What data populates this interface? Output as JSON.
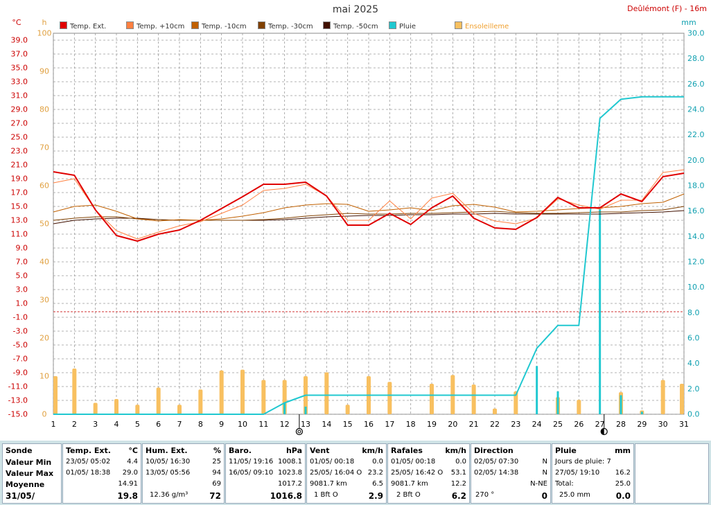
{
  "title": "mai 2025",
  "station": "Deûlémont (F) - 16m",
  "axis_units": {
    "temp": "°C",
    "sun": "h",
    "rain": "mm"
  },
  "legend": [
    {
      "label": "Temp. Ext.",
      "color": "#e00000"
    },
    {
      "label": "Temp. +10cm",
      "color": "#ff8040"
    },
    {
      "label": "Temp. -10cm",
      "color": "#c06000"
    },
    {
      "label": "Temp. -30cm",
      "color": "#804000"
    },
    {
      "label": "Temp. -50cm",
      "color": "#401000"
    },
    {
      "label": "Pluie",
      "color": "#20c8d0"
    },
    {
      "label": "Ensoleilleme",
      "color": "#f8c060"
    }
  ],
  "chart_data": {
    "type": "line",
    "title": "mai 2025",
    "x": [
      1,
      2,
      3,
      4,
      5,
      6,
      7,
      8,
      9,
      10,
      11,
      12,
      13,
      14,
      15,
      16,
      17,
      18,
      19,
      20,
      21,
      22,
      23,
      24,
      25,
      26,
      27,
      28,
      29,
      30,
      31
    ],
    "xlim": [
      1,
      31
    ],
    "temp_axis": {
      "ylim": [
        -15,
        40
      ],
      "ticks": [
        "39.0",
        "37.0",
        "35.0",
        "33.0",
        "31.0",
        "29.0",
        "27.0",
        "25.0",
        "23.0",
        "21.0",
        "19.0",
        "17.0",
        "15.0",
        "13.0",
        "11.0",
        "9.0",
        "7.0",
        "5.0",
        "3.0",
        "1.0",
        "-1.0",
        "-3.0",
        "-5.0",
        "-7.0",
        "-9.0",
        "-11.0",
        "-13.0",
        "-15.0"
      ]
    },
    "sun_axis": {
      "ylim": [
        0,
        100
      ],
      "ticks": [
        "100",
        "90",
        "80",
        "70",
        "60",
        "50",
        "40",
        "30",
        "20",
        "10",
        "0"
      ]
    },
    "rain_axis": {
      "ylim": [
        0,
        30
      ],
      "ticks": [
        "30.0",
        "28.0",
        "26.0",
        "24.0",
        "22.0",
        "20.0",
        "18.0",
        "16.0",
        "14.0",
        "12.0",
        "10.0",
        "8.0",
        "6.0",
        "4.0",
        "2.0",
        "0.0"
      ]
    },
    "series": [
      {
        "name": "Temp. Ext.",
        "axis": "temp",
        "color": "#e00000",
        "width": 2,
        "values": [
          20.0,
          19.5,
          14.5,
          10.8,
          10.0,
          11.0,
          11.6,
          13.0,
          14.7,
          16.4,
          18.2,
          18.2,
          18.5,
          16.5,
          12.3,
          12.3,
          14.0,
          12.4,
          14.8,
          16.5,
          13.3,
          11.9,
          11.7,
          13.4,
          16.3,
          14.8,
          14.8,
          16.8,
          15.7,
          19.3,
          19.8
        ]
      },
      {
        "name": "Temp. +10cm",
        "axis": "temp",
        "color": "#ff8040",
        "width": 1,
        "values": [
          18.4,
          19.0,
          14.5,
          11.5,
          10.3,
          11.3,
          12.2,
          12.8,
          14.0,
          15.2,
          17.3,
          17.6,
          18.2,
          16.5,
          13.0,
          13.0,
          15.8,
          13.2,
          16.2,
          16.9,
          14.0,
          12.9,
          12.5,
          13.3,
          16.1,
          15.2,
          14.6,
          15.9,
          15.9,
          19.9,
          20.3
        ]
      },
      {
        "name": "Temp. -10cm",
        "axis": "temp",
        "color": "#c06000",
        "width": 1,
        "values": [
          14.2,
          15.0,
          15.2,
          14.3,
          13.2,
          12.9,
          13.1,
          13.0,
          13.2,
          13.6,
          14.1,
          14.8,
          15.2,
          15.4,
          15.3,
          14.3,
          14.5,
          14.8,
          14.4,
          15.1,
          15.3,
          14.9,
          14.2,
          14.3,
          14.5,
          14.7,
          14.8,
          15.0,
          15.4,
          15.6,
          16.8
        ]
      },
      {
        "name": "Temp. -30cm",
        "axis": "temp",
        "color": "#804000",
        "width": 1,
        "values": [
          13.0,
          13.3,
          13.5,
          13.5,
          13.2,
          13.1,
          13.0,
          13.0,
          13.0,
          13.0,
          13.1,
          13.3,
          13.6,
          13.8,
          14.0,
          13.9,
          13.9,
          14.0,
          14.0,
          14.1,
          14.2,
          14.3,
          14.1,
          14.0,
          14.0,
          14.1,
          14.2,
          14.2,
          14.4,
          14.5,
          15.0
        ]
      },
      {
        "name": "Temp. -50cm",
        "axis": "temp",
        "color": "#401000",
        "width": 1,
        "values": [
          12.5,
          13.0,
          13.2,
          13.3,
          13.3,
          13.1,
          13.0,
          13.0,
          13.0,
          13.0,
          13.0,
          13.1,
          13.3,
          13.5,
          13.6,
          13.7,
          13.7,
          13.8,
          13.8,
          13.9,
          13.9,
          14.0,
          13.9,
          13.9,
          13.9,
          13.9,
          13.9,
          14.0,
          14.1,
          14.2,
          14.4
        ]
      },
      {
        "name": "Pluie",
        "axis": "rain",
        "color": "#20c8d0",
        "width": 2,
        "x": [
          1,
          11,
          12,
          13,
          23,
          24,
          25,
          26,
          27,
          28,
          29,
          30,
          31
        ],
        "values": [
          0.0,
          0.0,
          0.9,
          1.5,
          1.5,
          5.2,
          7.0,
          7.0,
          23.3,
          24.8,
          25.0,
          25.0,
          25.0
        ]
      }
    ],
    "daily_rain": {
      "axis": "rain",
      "color": "#20c8d0",
      "x": [
        12,
        13,
        24,
        25,
        27,
        28,
        29
      ],
      "values": [
        0.9,
        0.6,
        3.8,
        1.8,
        16.2,
        1.5,
        0.2
      ]
    },
    "sunshine": {
      "axis": "sun",
      "color": "#f8c060",
      "x": [
        1,
        2,
        3,
        4,
        5,
        6,
        7,
        8,
        9,
        10,
        11,
        12,
        13,
        14,
        15,
        16,
        17,
        18,
        19,
        20,
        21,
        22,
        23,
        24,
        25,
        26,
        27,
        28,
        29,
        30,
        31
      ],
      "values": [
        10.0,
        12.0,
        3.0,
        4.0,
        2.5,
        7.0,
        2.5,
        6.5,
        11.5,
        11.7,
        9.0,
        9.0,
        10.0,
        11.0,
        2.5,
        10.0,
        8.5,
        0.0,
        8.0,
        10.3,
        7.8,
        1.5,
        6.0,
        0.0,
        4.5,
        3.8,
        0.0,
        5.8,
        1.0,
        9.0,
        8.0
      ]
    },
    "reference_line": {
      "axis": "temp",
      "value": -0.2,
      "color": "#d03030",
      "style": "dashed"
    },
    "moon_markers": [
      {
        "day": 12.7,
        "phase": "new"
      },
      {
        "day": 27.2,
        "phase": "full"
      }
    ]
  },
  "summary": {
    "sonde": {
      "header": "Sonde",
      "rows": [
        "Valeur Min",
        "Valeur Max",
        "Moyenne",
        "31/05/"
      ]
    },
    "temp": {
      "header": "Temp. Ext.",
      "unit": "°C",
      "min_date": "23/05/  05:02",
      "min_val": "4.4",
      "max_date": "01/05/  18:38",
      "max_val": "29.0",
      "avg": "14.91",
      "cur": "19.8"
    },
    "hum": {
      "header": "Hum. Ext.",
      "unit": "%",
      "min_date": "10/05/  16:30",
      "min_val": "25",
      "max_date": "13/05/  05:56",
      "max_val": "94",
      "avg": "69",
      "cur_extra": "12.36 g/m³",
      "cur": "72"
    },
    "baro": {
      "header": "Baro.",
      "unit": "hPa",
      "min_date": "11/05/  19:16",
      "min_val": "1008.1",
      "max_date": "16/05/  09:10",
      "max_val": "1023.8",
      "avg": "1017.2",
      "cur": "1016.8"
    },
    "vent": {
      "header": "Vent",
      "unit": "km/h",
      "min_date": "01/05/  00:18",
      "min_val": "0.0",
      "max_date": "25/05/  16:04  O",
      "max_val": "23.2",
      "avg_extra": "9081.7 km",
      "avg": "6.5",
      "cur_extra": "1 Bft O",
      "cur": "2.9"
    },
    "rafales": {
      "header": "Rafales",
      "unit": "km/h",
      "min_date": "01/05/  00:18",
      "min_val": "0.0",
      "max_date": "25/05/  16:42  O",
      "max_val": "53.1",
      "avg_extra": "9081.7 km",
      "avg": "12.2",
      "cur_extra": "2 Bft O",
      "cur": "6.2"
    },
    "direction": {
      "header": "Direction",
      "min_date": "02/05/  07:30",
      "min_val": "N",
      "max_date": "02/05/  14:38",
      "max_val": "N",
      "avg": "N-NE",
      "cur_extra": "270 °",
      "cur": "0"
    },
    "pluie": {
      "header": "Pluie",
      "unit": "mm",
      "r1": "Jours de pluie: 7",
      "r2_date": "27/05/  19:10",
      "r2_val": "16.2",
      "r3": "Total:",
      "r3_val": "25.0",
      "r4": "25.0 mm",
      "r4_val": "0.0"
    }
  }
}
